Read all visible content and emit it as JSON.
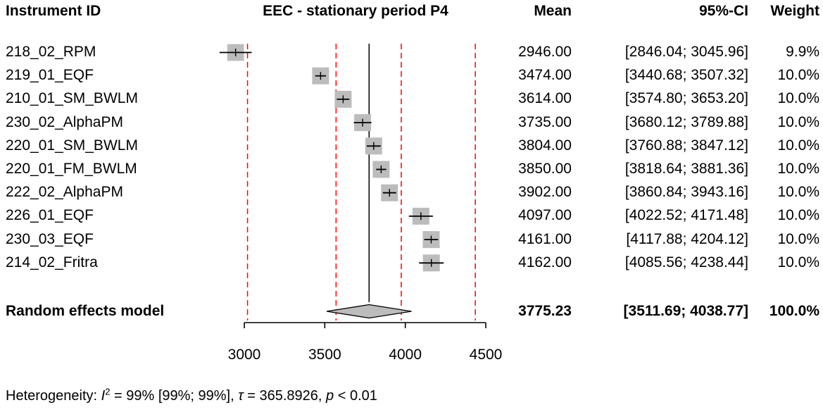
{
  "header": {
    "instrument": "Instrument ID",
    "mean": "Mean",
    "ci": "95%-CI",
    "weight": "Weight"
  },
  "chart_data": {
    "type": "forest",
    "title": "EEC - stationary period P4",
    "x_axis": {
      "ticks": [
        3000,
        3500,
        4000,
        4500
      ],
      "range": [
        2830,
        4560
      ]
    },
    "studies": [
      {
        "id": "218_02_RPM",
        "mean": 2946.0,
        "ci_low": 2846.04,
        "ci_high": 3045.96,
        "weight_pct": 9.9
      },
      {
        "id": "219_01_EQF",
        "mean": 3474.0,
        "ci_low": 3440.68,
        "ci_high": 3507.32,
        "weight_pct": 10.0
      },
      {
        "id": "210_01_SM_BWLM",
        "mean": 3614.0,
        "ci_low": 3574.8,
        "ci_high": 3653.2,
        "weight_pct": 10.0
      },
      {
        "id": "230_02_AlphaPM",
        "mean": 3735.0,
        "ci_low": 3680.12,
        "ci_high": 3789.88,
        "weight_pct": 10.0
      },
      {
        "id": "220_01_SM_BWLM",
        "mean": 3804.0,
        "ci_low": 3760.88,
        "ci_high": 3847.12,
        "weight_pct": 10.0
      },
      {
        "id": "220_01_FM_BWLM",
        "mean": 3850.0,
        "ci_low": 3818.64,
        "ci_high": 3881.36,
        "weight_pct": 10.0
      },
      {
        "id": "222_02_AlphaPM",
        "mean": 3902.0,
        "ci_low": 3860.84,
        "ci_high": 3943.16,
        "weight_pct": 10.0
      },
      {
        "id": "226_01_EQF",
        "mean": 4097.0,
        "ci_low": 4022.52,
        "ci_high": 4171.48,
        "weight_pct": 10.0
      },
      {
        "id": "230_03_EQF",
        "mean": 4161.0,
        "ci_low": 4117.88,
        "ci_high": 4204.12,
        "weight_pct": 10.0
      },
      {
        "id": "214_02_Fritra",
        "mean": 4162.0,
        "ci_low": 4085.56,
        "ci_high": 4238.44,
        "weight_pct": 10.0
      }
    ],
    "pooled": {
      "label": "Random effects model",
      "mean": 3775.23,
      "ci_low": 3511.69,
      "ci_high": 4038.77,
      "weight_pct": 100.0
    },
    "pooled_mean_line": 3775.23,
    "reference_lines": [
      3020,
      3570,
      3975,
      4435
    ],
    "heterogeneity": {
      "I2": "99%",
      "I2_ci": "[99%; 99%]",
      "tau": 365.8926,
      "p": "< 0.01"
    },
    "colors": {
      "square": "#bcbcbc",
      "diamond": "#bcbcbc",
      "reference": "#ff0000",
      "line": "#000000"
    }
  },
  "footer": {
    "prefix": "Heterogeneity: ",
    "i_symbol": "I",
    "i_sup": "2",
    "after_i2": " = 99% [99%; 99%], ",
    "tau_symbol": "τ",
    "after_tau": " = 365.8926, ",
    "p_symbol": "p",
    "after_p": " < 0.01"
  }
}
